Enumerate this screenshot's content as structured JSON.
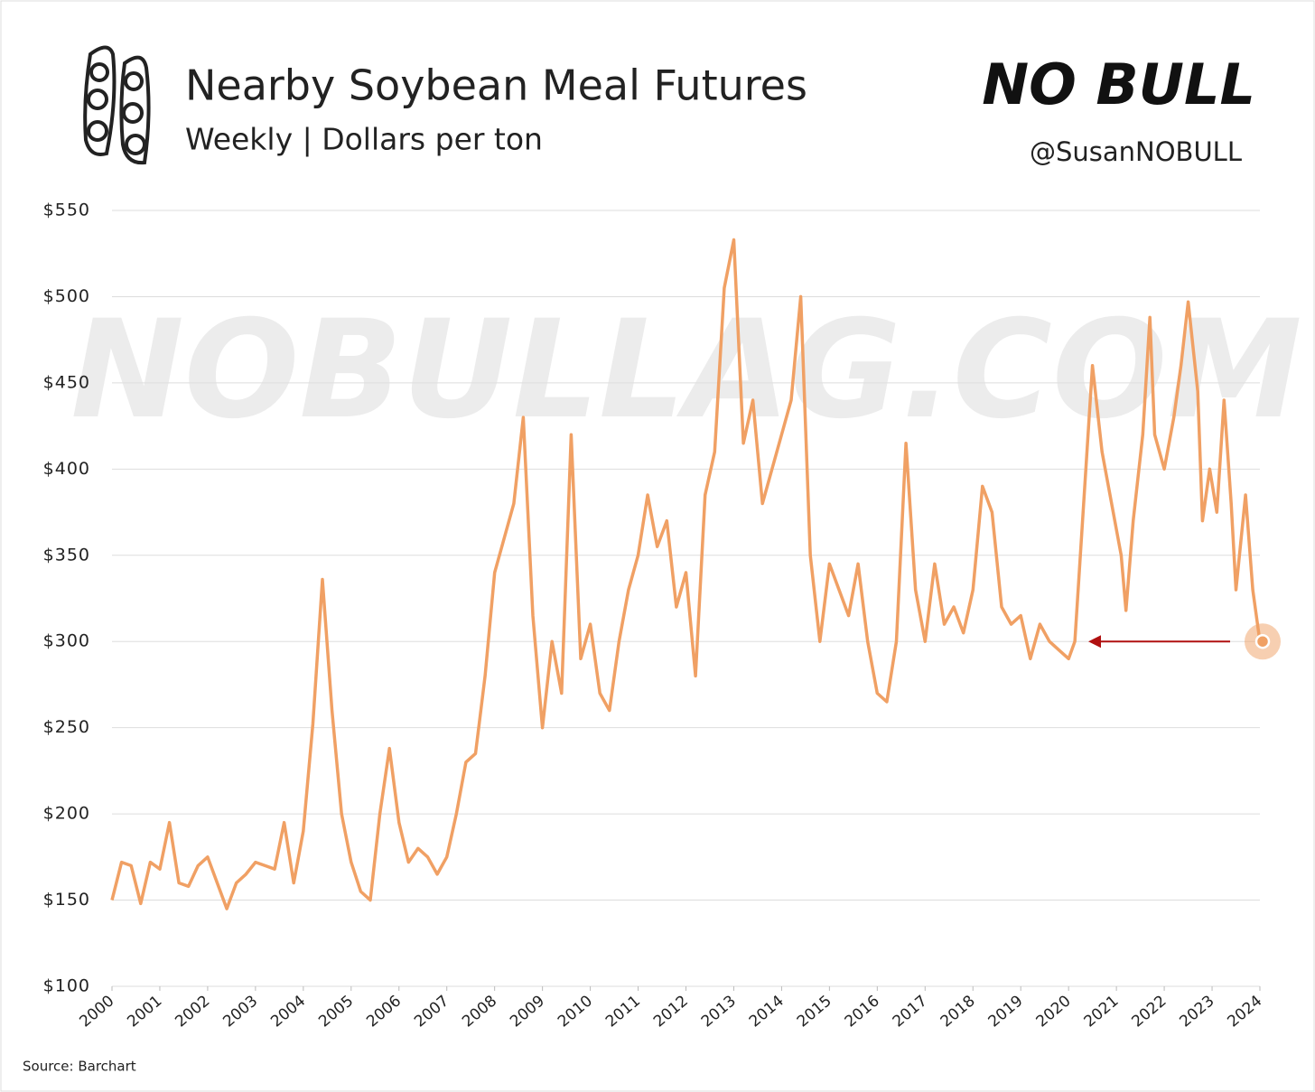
{
  "chart_data": {
    "type": "line",
    "title": "Nearby Soybean Meal Futures",
    "subtitle": "Weekly | Dollars per ton",
    "brand": "NO BULL",
    "handle": "@SusanNOBULL",
    "watermark": "NOBULLAG.COM",
    "source": "Source: Barchart",
    "x": [
      2000,
      2000.2,
      2000.4,
      2000.6,
      2000.8,
      2001,
      2001.2,
      2001.4,
      2001.6,
      2001.8,
      2002,
      2002.2,
      2002.4,
      2002.6,
      2002.8,
      2003,
      2003.2,
      2003.4,
      2003.6,
      2003.8,
      2004,
      2004.2,
      2004.4,
      2004.6,
      2004.8,
      2005,
      2005.2,
      2005.4,
      2005.6,
      2005.8,
      2006,
      2006.2,
      2006.4,
      2006.6,
      2006.8,
      2007,
      2007.2,
      2007.4,
      2007.6,
      2007.8,
      2008,
      2008.2,
      2008.4,
      2008.6,
      2008.8,
      2009,
      2009.2,
      2009.4,
      2009.6,
      2009.8,
      2010,
      2010.2,
      2010.4,
      2010.6,
      2010.8,
      2011,
      2011.2,
      2011.4,
      2011.6,
      2011.8,
      2012,
      2012.2,
      2012.4,
      2012.6,
      2012.8,
      2013,
      2013.2,
      2013.4,
      2013.6,
      2013.8,
      2014,
      2014.2,
      2014.4,
      2014.6,
      2014.8,
      2015,
      2015.2,
      2015.4,
      2015.6,
      2015.8,
      2016,
      2016.2,
      2016.4,
      2016.6,
      2016.8,
      2017,
      2017.2,
      2017.4,
      2017.6,
      2017.8,
      2018,
      2018.2,
      2018.4,
      2018.6,
      2018.8,
      2019,
      2019.2,
      2019.4,
      2019.6,
      2019.8,
      2020,
      2020.13,
      2020.5,
      2020.7,
      2021.1,
      2021.2,
      2021.35,
      2021.55,
      2021.7,
      2021.8,
      2022,
      2022.2,
      2022.35,
      2022.5,
      2022.7,
      2022.8,
      2022.95,
      2023.1,
      2023.25,
      2023.4,
      2023.5,
      2023.7,
      2023.85,
      2024
    ],
    "series": [
      {
        "name": "Soybean meal",
        "color": "#f0a064",
        "values": [
          150,
          172,
          170,
          148,
          172,
          168,
          195,
          160,
          158,
          170,
          175,
          160,
          145,
          160,
          165,
          172,
          170,
          168,
          195,
          160,
          190,
          252,
          336,
          260,
          200,
          172,
          155,
          150,
          200,
          238,
          195,
          172,
          180,
          175,
          165,
          175,
          200,
          230,
          235,
          280,
          340,
          360,
          380,
          430,
          315,
          250,
          300,
          270,
          420,
          290,
          310,
          270,
          260,
          300,
          330,
          350,
          385,
          355,
          370,
          320,
          340,
          280,
          385,
          410,
          505,
          533,
          415,
          440,
          380,
          400,
          420,
          440,
          500,
          350,
          300,
          345,
          330,
          315,
          345,
          300,
          270,
          265,
          300,
          415,
          330,
          300,
          345,
          310,
          320,
          305,
          330,
          390,
          375,
          320,
          310,
          315,
          290,
          310,
          300,
          295,
          290,
          300,
          460,
          410,
          350,
          318,
          370,
          420,
          488,
          420,
          400,
          430,
          460,
          497,
          445,
          370,
          400,
          375,
          440,
          380,
          330,
          385,
          330,
          300
        ]
      }
    ],
    "xlim": [
      2000,
      2024
    ],
    "xticks": [
      2000,
      2001,
      2002,
      2003,
      2004,
      2005,
      2006,
      2007,
      2008,
      2009,
      2010,
      2011,
      2012,
      2013,
      2014,
      2015,
      2016,
      2017,
      2018,
      2019,
      2020,
      2021,
      2022,
      2023,
      2024
    ],
    "ylim": [
      100,
      550
    ],
    "yticks": [
      {
        "value": 100,
        "label": "$100"
      },
      {
        "value": 150,
        "label": "$150"
      },
      {
        "value": 200,
        "label": "$200"
      },
      {
        "value": 250,
        "label": "$250"
      },
      {
        "value": 300,
        "label": "$300"
      },
      {
        "value": 350,
        "label": "$350"
      },
      {
        "value": 400,
        "label": "$400"
      },
      {
        "value": 450,
        "label": "$450"
      },
      {
        "value": 500,
        "label": "$500"
      },
      {
        "value": 550,
        "label": "$550"
      }
    ],
    "grid": true
  }
}
